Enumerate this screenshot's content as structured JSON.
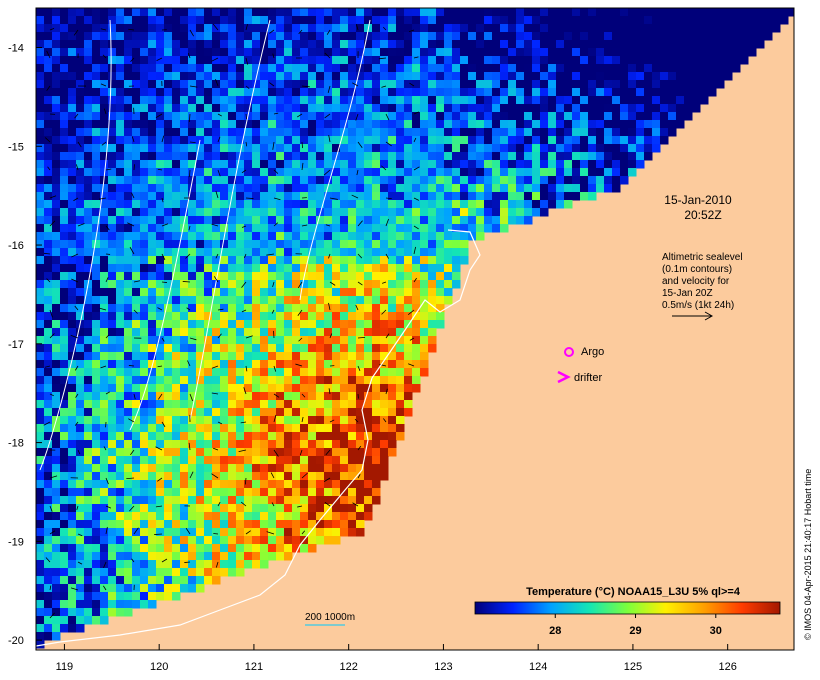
{
  "map": {
    "lat_ticks": [
      "-14",
      "-15",
      "-16",
      "-17",
      "-18",
      "-19",
      "-20"
    ],
    "lon_ticks": [
      "119",
      "120",
      "121",
      "122",
      "123",
      "124",
      "125",
      "126"
    ],
    "lon_range": [
      118.7,
      126.7
    ],
    "lat_range": [
      -20.1,
      -13.6
    ],
    "colors": {
      "land": "#fccb9d",
      "cold": "#00077a",
      "warm": "#a31800",
      "contour": "#ffffff",
      "marker": "#ff00ff"
    }
  },
  "annotations": {
    "date": "15-Jan-2010",
    "time": "20:52Z",
    "altimetry_lines": [
      "Altimetric sealevel",
      "(0.1m contours)",
      "and velocity for",
      "15-Jan 20Z",
      "0.5m/s (1kt 24h)"
    ],
    "argo_label": "Argo",
    "drifter_label": "drifter",
    "depth_label": "200  1000m",
    "credit": "© IMOS 04-Apr-2015 21:40:17 Hobart time"
  },
  "colorbar": {
    "title": "Temperature (°C) NOAA15_L3U 5% ql>=4",
    "tick_labels": [
      "28",
      "29",
      "30"
    ],
    "range": [
      27.0,
      30.8
    ],
    "ticks": [
      28,
      29,
      30
    ],
    "stops": [
      "#00007a",
      "#0023ff",
      "#00a2ff",
      "#14e6b4",
      "#7cff3c",
      "#fff000",
      "#ffa000",
      "#ff3c00",
      "#a31800"
    ]
  }
}
